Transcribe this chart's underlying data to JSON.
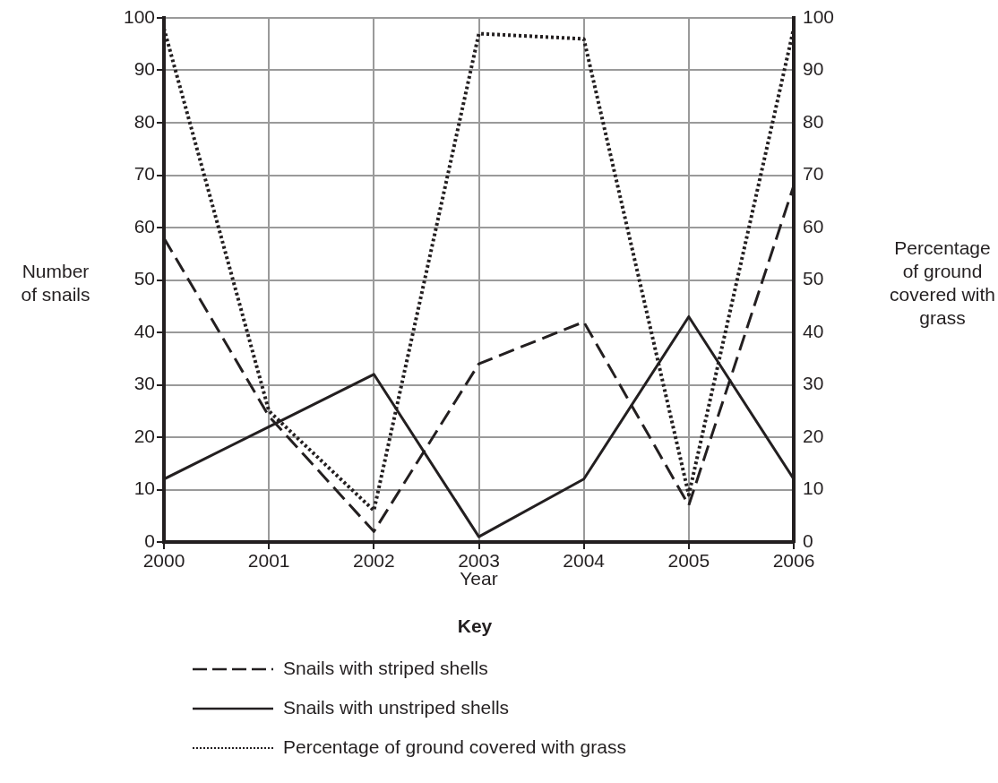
{
  "chart_data": {
    "type": "line",
    "xlabel": "Year",
    "ylabel": "Number of snails",
    "y2label": "Percentage of ground covered with grass",
    "legend_title": "Key",
    "legend": "bottom",
    "grid": true,
    "marker": "none",
    "x": [
      2000,
      2001,
      2002,
      2003,
      2004,
      2005,
      2006
    ],
    "xlim": [
      2000,
      2006
    ],
    "xticks": [
      2000,
      2001,
      2002,
      2003,
      2004,
      2005,
      2006
    ],
    "ylim": [
      0,
      100
    ],
    "yticks": [
      0,
      10,
      20,
      30,
      40,
      50,
      60,
      70,
      80,
      90,
      100
    ],
    "y2lim": [
      0,
      100
    ],
    "y2ticks": [
      0,
      10,
      20,
      30,
      40,
      50,
      60,
      70,
      80,
      90,
      100
    ],
    "series": [
      {
        "name": "Snails with striped shells",
        "color": "#231f20",
        "line_style": "dashed",
        "values": [
          58,
          24,
          2,
          34,
          42,
          7,
          68
        ]
      },
      {
        "name": "Snails with unstriped shells",
        "color": "#231f20",
        "line_style": "solid",
        "values": [
          12,
          22,
          32,
          1,
          12,
          43,
          12
        ]
      },
      {
        "name": "Percentage of ground covered with grass",
        "color": "#231f20",
        "line_style": "dotted",
        "axis": "y2",
        "values": [
          98,
          25,
          6,
          97,
          96,
          9,
          98
        ]
      }
    ]
  }
}
